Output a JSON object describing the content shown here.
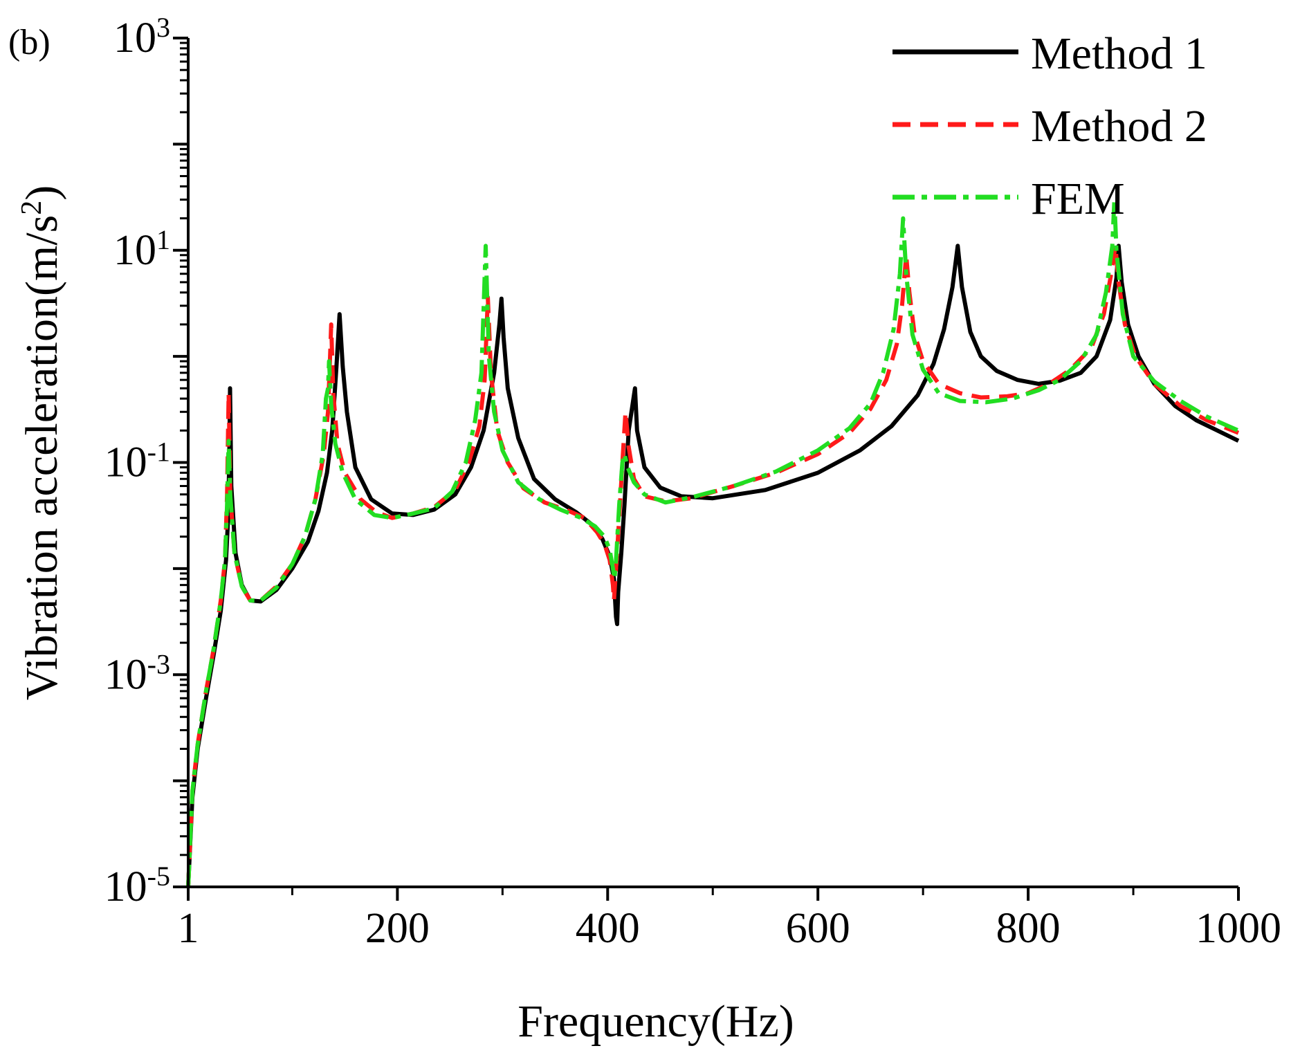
{
  "chart_data": {
    "type": "line",
    "panel_label": "(b)",
    "xlabel": "Frequency(Hz)",
    "ylabel": "Vibration acceleration(m/s",
    "ylabel_sup": "2",
    "ylabel_close": ")",
    "xscale": "linear",
    "yscale": "log",
    "xlim": [
      1,
      1000
    ],
    "ylim": [
      1e-05,
      1000
    ],
    "x_ticks": [
      {
        "value": 1,
        "label": "1"
      },
      {
        "value": 200,
        "label": "200"
      },
      {
        "value": 400,
        "label": "400"
      },
      {
        "value": 600,
        "label": "600"
      },
      {
        "value": 800,
        "label": "800"
      },
      {
        "value": 1000,
        "label": "1000"
      }
    ],
    "y_ticks": [
      {
        "value": 1e-05,
        "base": "10",
        "exp": "-5"
      },
      {
        "value": 0.001,
        "base": "10",
        "exp": "-3"
      },
      {
        "value": 0.1,
        "base": "10",
        "exp": "-1"
      },
      {
        "value": 10,
        "base": "10",
        "exp": "1"
      },
      {
        "value": 1000,
        "base": "10",
        "exp": "3"
      }
    ],
    "legend_position": "top-right",
    "series": [
      {
        "name": "Method 1",
        "color": "#000000",
        "dash": "solid",
        "points": [
          [
            1,
            1e-05
          ],
          [
            5,
            7e-05
          ],
          [
            10,
            0.0002
          ],
          [
            18,
            0.0006
          ],
          [
            25,
            0.0015
          ],
          [
            32,
            0.004
          ],
          [
            37,
            0.012
          ],
          [
            39,
            0.03
          ],
          [
            40,
            0.1
          ],
          [
            40.8,
            0.5
          ],
          [
            42,
            0.06
          ],
          [
            46,
            0.014
          ],
          [
            52,
            0.007
          ],
          [
            60,
            0.005
          ],
          [
            70,
            0.0049
          ],
          [
            85,
            0.0063
          ],
          [
            100,
            0.01
          ],
          [
            115,
            0.018
          ],
          [
            125,
            0.035
          ],
          [
            133,
            0.08
          ],
          [
            138,
            0.2
          ],
          [
            142,
            0.8
          ],
          [
            145,
            2.5
          ],
          [
            148,
            0.8
          ],
          [
            152,
            0.3
          ],
          [
            160,
            0.09
          ],
          [
            175,
            0.045
          ],
          [
            195,
            0.033
          ],
          [
            215,
            0.032
          ],
          [
            235,
            0.036
          ],
          [
            255,
            0.05
          ],
          [
            270,
            0.09
          ],
          [
            282,
            0.2
          ],
          [
            292,
            0.7
          ],
          [
            297,
            2
          ],
          [
            299,
            3.5
          ],
          [
            301,
            1.5
          ],
          [
            305,
            0.5
          ],
          [
            315,
            0.17
          ],
          [
            330,
            0.07
          ],
          [
            350,
            0.045
          ],
          [
            370,
            0.034
          ],
          [
            385,
            0.026
          ],
          [
            395,
            0.019
          ],
          [
            402,
            0.013
          ],
          [
            406,
            0.008
          ],
          [
            408,
            0.0035
          ],
          [
            409,
            0.003
          ],
          [
            410,
            0.006
          ],
          [
            413,
            0.014
          ],
          [
            416,
            0.04
          ],
          [
            420,
            0.2
          ],
          [
            426,
            0.5
          ],
          [
            428,
            0.2
          ],
          [
            435,
            0.09
          ],
          [
            450,
            0.058
          ],
          [
            470,
            0.048
          ],
          [
            500,
            0.046
          ],
          [
            550,
            0.055
          ],
          [
            600,
            0.08
          ],
          [
            640,
            0.13
          ],
          [
            670,
            0.22
          ],
          [
            695,
            0.43
          ],
          [
            710,
            0.85
          ],
          [
            720,
            1.8
          ],
          [
            728,
            4.5
          ],
          [
            733,
            11
          ],
          [
            737,
            4.5
          ],
          [
            745,
            1.7
          ],
          [
            755,
            1
          ],
          [
            770,
            0.73
          ],
          [
            790,
            0.6
          ],
          [
            810,
            0.55
          ],
          [
            830,
            0.59
          ],
          [
            850,
            0.7
          ],
          [
            865,
            1
          ],
          [
            878,
            2.2
          ],
          [
            884,
            5.5
          ],
          [
            886,
            11
          ],
          [
            889,
            5
          ],
          [
            895,
            2
          ],
          [
            905,
            1
          ],
          [
            920,
            0.55
          ],
          [
            940,
            0.34
          ],
          [
            960,
            0.25
          ],
          [
            980,
            0.2
          ],
          [
            1000,
            0.16
          ]
        ]
      },
      {
        "name": "Method 2",
        "color": "#ff1a1a",
        "dash": "26 14",
        "points": [
          [
            1,
            1e-05
          ],
          [
            5,
            8e-05
          ],
          [
            10,
            0.00022
          ],
          [
            18,
            0.0007
          ],
          [
            25,
            0.0017
          ],
          [
            32,
            0.005
          ],
          [
            36,
            0.012
          ],
          [
            38,
            0.05
          ],
          [
            39.5,
            0.45
          ],
          [
            41,
            0.05
          ],
          [
            45,
            0.014
          ],
          [
            52,
            0.0068
          ],
          [
            60,
            0.005
          ],
          [
            70,
            0.005
          ],
          [
            85,
            0.0068
          ],
          [
            100,
            0.011
          ],
          [
            112,
            0.02
          ],
          [
            122,
            0.045
          ],
          [
            130,
            0.12
          ],
          [
            134,
            0.3
          ],
          [
            136,
            1
          ],
          [
            137,
            2
          ],
          [
            139,
            0.45
          ],
          [
            143,
            0.15
          ],
          [
            150,
            0.08
          ],
          [
            165,
            0.045
          ],
          [
            180,
            0.034
          ],
          [
            195,
            0.03
          ],
          [
            215,
            0.033
          ],
          [
            235,
            0.038
          ],
          [
            255,
            0.055
          ],
          [
            268,
            0.1
          ],
          [
            278,
            0.22
          ],
          [
            283,
            0.6
          ],
          [
            286,
            3.6
          ],
          [
            289,
            0.7
          ],
          [
            295,
            0.2
          ],
          [
            305,
            0.1
          ],
          [
            320,
            0.057
          ],
          [
            340,
            0.042
          ],
          [
            360,
            0.036
          ],
          [
            378,
            0.03
          ],
          [
            390,
            0.022
          ],
          [
            397,
            0.017
          ],
          [
            402,
            0.012
          ],
          [
            405,
            0.007
          ],
          [
            406,
            0.005
          ],
          [
            408,
            0.01
          ],
          [
            411,
            0.03
          ],
          [
            414,
            0.1
          ],
          [
            417,
            0.3
          ],
          [
            420,
            0.14
          ],
          [
            425,
            0.07
          ],
          [
            435,
            0.048
          ],
          [
            455,
            0.043
          ],
          [
            480,
            0.046
          ],
          [
            520,
            0.06
          ],
          [
            560,
            0.08
          ],
          [
            600,
            0.12
          ],
          [
            630,
            0.19
          ],
          [
            650,
            0.32
          ],
          [
            665,
            0.6
          ],
          [
            675,
            1.3
          ],
          [
            680,
            3
          ],
          [
            684,
            9
          ],
          [
            687,
            4
          ],
          [
            692,
            1.6
          ],
          [
            700,
            0.9
          ],
          [
            715,
            0.55
          ],
          [
            735,
            0.45
          ],
          [
            755,
            0.41
          ],
          [
            780,
            0.42
          ],
          [
            800,
            0.45
          ],
          [
            820,
            0.55
          ],
          [
            840,
            0.75
          ],
          [
            860,
            1.2
          ],
          [
            872,
            2.5
          ],
          [
            879,
            6
          ],
          [
            883,
            11
          ],
          [
            886,
            5
          ],
          [
            892,
            2
          ],
          [
            902,
            1
          ],
          [
            920,
            0.55
          ],
          [
            945,
            0.34
          ],
          [
            970,
            0.25
          ],
          [
            1000,
            0.19
          ]
        ]
      },
      {
        "name": "FEM",
        "color": "#22dd22",
        "dash": "32 10 8 10",
        "points": [
          [
            1,
            1e-05
          ],
          [
            5,
            8e-05
          ],
          [
            10,
            0.00022
          ],
          [
            18,
            0.0007
          ],
          [
            25,
            0.0017
          ],
          [
            32,
            0.005
          ],
          [
            36,
            0.012
          ],
          [
            38,
            0.04
          ],
          [
            39.5,
            0.16
          ],
          [
            41,
            0.05
          ],
          [
            45,
            0.014
          ],
          [
            52,
            0.0068
          ],
          [
            60,
            0.005
          ],
          [
            70,
            0.005
          ],
          [
            85,
            0.0066
          ],
          [
            100,
            0.011
          ],
          [
            112,
            0.02
          ],
          [
            122,
            0.045
          ],
          [
            129,
            0.12
          ],
          [
            132,
            0.4
          ],
          [
            134,
            0.5
          ],
          [
            135,
            0.9
          ],
          [
            137,
            0.35
          ],
          [
            141,
            0.15
          ],
          [
            148,
            0.08
          ],
          [
            160,
            0.045
          ],
          [
            178,
            0.032
          ],
          [
            195,
            0.03
          ],
          [
            215,
            0.033
          ],
          [
            235,
            0.037
          ],
          [
            252,
            0.053
          ],
          [
            265,
            0.1
          ],
          [
            274,
            0.25
          ],
          [
            280,
            0.7
          ],
          [
            284,
            11
          ],
          [
            287,
            1
          ],
          [
            292,
            0.3
          ],
          [
            300,
            0.13
          ],
          [
            315,
            0.065
          ],
          [
            335,
            0.045
          ],
          [
            355,
            0.036
          ],
          [
            375,
            0.03
          ],
          [
            388,
            0.025
          ],
          [
            397,
            0.02
          ],
          [
            402,
            0.015
          ],
          [
            405,
            0.01
          ],
          [
            406.5,
            0.008
          ],
          [
            408,
            0.012
          ],
          [
            411,
            0.04
          ],
          [
            414,
            0.1
          ],
          [
            416,
            0.12
          ],
          [
            419,
            0.09
          ],
          [
            425,
            0.065
          ],
          [
            435,
            0.05
          ],
          [
            455,
            0.042
          ],
          [
            480,
            0.047
          ],
          [
            520,
            0.06
          ],
          [
            560,
            0.082
          ],
          [
            600,
            0.13
          ],
          [
            630,
            0.21
          ],
          [
            650,
            0.36
          ],
          [
            662,
            0.7
          ],
          [
            672,
            1.8
          ],
          [
            678,
            6
          ],
          [
            681,
            20
          ],
          [
            684,
            6
          ],
          [
            690,
            1.6
          ],
          [
            700,
            0.75
          ],
          [
            715,
            0.45
          ],
          [
            735,
            0.38
          ],
          [
            760,
            0.37
          ],
          [
            785,
            0.4
          ],
          [
            810,
            0.48
          ],
          [
            830,
            0.6
          ],
          [
            850,
            0.9
          ],
          [
            865,
            1.6
          ],
          [
            874,
            4
          ],
          [
            880,
            11
          ],
          [
            882,
            30
          ],
          [
            884,
            10
          ],
          [
            890,
            2.5
          ],
          [
            900,
            1
          ],
          [
            920,
            0.58
          ],
          [
            945,
            0.38
          ],
          [
            970,
            0.27
          ],
          [
            1000,
            0.2
          ]
        ]
      }
    ]
  }
}
